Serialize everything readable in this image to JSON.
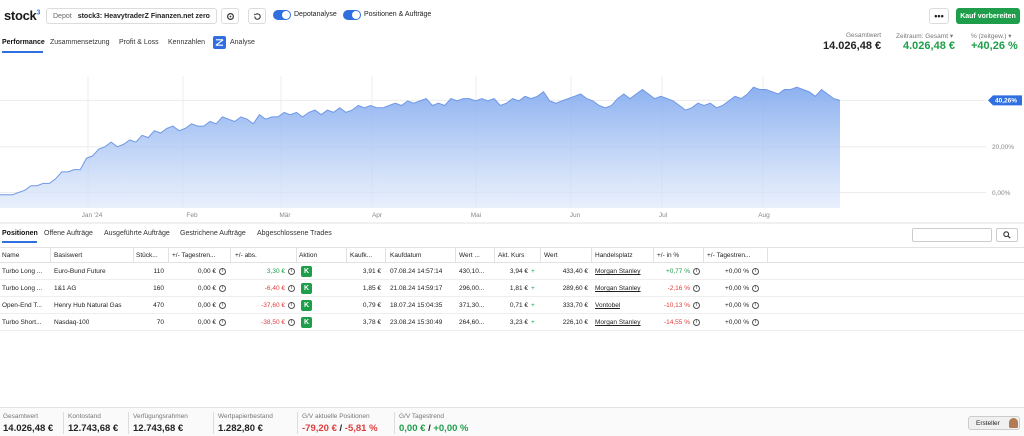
{
  "app": {
    "logo": "stock",
    "logo_sup": "3"
  },
  "depot": {
    "label": "Depot",
    "value": "stock3: HeavytraderZ Finanzen.net zero"
  },
  "toggles": {
    "depotanalyse": "Depotanalyse",
    "positionen": "Positionen & Aufträge"
  },
  "buttons": {
    "more": "•••",
    "buy": "Kauf vorbereiten",
    "search": "⌕",
    "ersteller": "Ersteller"
  },
  "icons": {
    "settings": "gear-icon",
    "refresh": "refresh-icon",
    "analyse": "analyse-icon"
  },
  "tabs": [
    "Performance",
    "Zusammensetzung",
    "Profit & Loss",
    "Kennzahlen",
    "Analyse"
  ],
  "summary": {
    "gesamtwert_label": "Gesamtwert",
    "gesamtwert_value": "14.026,48 €",
    "zeitraum_label": "Zeitraum: Gesamt ▾",
    "zeitraum_value": "4.026,48 €",
    "pct_label": "% (zeitgew.) ▾",
    "pct_value": "+40,26 %"
  },
  "colors": {
    "accent": "#2f6fe0",
    "green": "#1e9e4a",
    "red": "#e03c3c",
    "area": "#9bbcf2"
  },
  "chart_data": {
    "type": "area",
    "x_tick_labels": [
      "Jan '24",
      "Feb",
      "Mär",
      "Apr",
      "Mai",
      "Jun",
      "Jul",
      "Aug"
    ],
    "y_tick_labels": [
      "40,26%",
      "20,00%",
      "0,00%"
    ],
    "current_value_label": "40,26%",
    "ylim": [
      -5,
      50
    ],
    "grid": true,
    "series": [
      {
        "values": [
          -1,
          -1,
          -1,
          0,
          1,
          3,
          3,
          4,
          4,
          6,
          9,
          9,
          10,
          10,
          15,
          16,
          19,
          20,
          22,
          20,
          21,
          23,
          22,
          25,
          24,
          27,
          26,
          28,
          29,
          27,
          28,
          30,
          29,
          29,
          31,
          30,
          33,
          32,
          31,
          33,
          32,
          30,
          34,
          32,
          33,
          33,
          35,
          34,
          35,
          33,
          35,
          36,
          34,
          36,
          35,
          37,
          35,
          36,
          38,
          37,
          38,
          37,
          37,
          38,
          39,
          38,
          40,
          39,
          40,
          41,
          38,
          39,
          38,
          41,
          40,
          41,
          41,
          40,
          41,
          40,
          41,
          38,
          39,
          41,
          40,
          42,
          41,
          42,
          44,
          40,
          39,
          40,
          41,
          42,
          43,
          41,
          40,
          38,
          37,
          38,
          41,
          43,
          41,
          43,
          45,
          43,
          41,
          42,
          41,
          40,
          38,
          36,
          37,
          39,
          38,
          39,
          37,
          38,
          40,
          42,
          41,
          43,
          46,
          45,
          45,
          44,
          43,
          45,
          45,
          46,
          45,
          44,
          42,
          45,
          43,
          41,
          40.26
        ]
      }
    ]
  },
  "position_tabs": [
    "Positionen",
    "Offene Aufträge",
    "Ausgeführte Aufträge",
    "Gestrichene Aufträge",
    "Abgeschlossene Trades"
  ],
  "table": {
    "headers": [
      "Name",
      "Basiswert",
      "Stück...",
      "+/- Tagestren...",
      "+/- abs.",
      "Aktion",
      "Kaufk...",
      "Kaufdatum",
      "Wert ...",
      "Akt. Kurs",
      "Wert",
      "Handelsplatz",
      "+/- in %",
      "+/- Tagestren..."
    ],
    "rows": [
      {
        "name": "Turbo Long ...",
        "basiswert": "Euro-Bund Future",
        "stueck": "110",
        "tagestrend": "0,00 €",
        "abs": "3,30 €",
        "aktion": "K",
        "kaufkurs": "3,91 €",
        "kaufdatum": "07.08.24 14:57:14",
        "wert_kauf": "430,10...",
        "akt_kurs": "3,94 €",
        "wert": "433,40 €",
        "handelsplatz": "Morgan Stanley",
        "pct": "+0,77 %",
        "tagestrend_pct": "+0,00 %",
        "sign": "pos"
      },
      {
        "name": "Turbo Long ...",
        "basiswert": "1&1 AG",
        "stueck": "160",
        "tagestrend": "0,00 €",
        "abs": "-6,40 €",
        "aktion": "K",
        "kaufkurs": "1,85 €",
        "kaufdatum": "21.08.24 14:59:17",
        "wert_kauf": "296,00...",
        "akt_kurs": "1,81 €",
        "wert": "289,60 €",
        "handelsplatz": "Morgan Stanley",
        "pct": "-2,16 %",
        "tagestrend_pct": "+0,00 %",
        "sign": "neg"
      },
      {
        "name": "Open-End T...",
        "basiswert": "Henry Hub Natural Gas",
        "stueck": "470",
        "tagestrend": "0,00 €",
        "abs": "-37,60 €",
        "aktion": "K",
        "kaufkurs": "0,79 €",
        "kaufdatum": "18.07.24 15:04:35",
        "wert_kauf": "371,30...",
        "akt_kurs": "0,71 €",
        "wert": "333,70 €",
        "handelsplatz": "Vontobel",
        "pct": "-10,13 %",
        "tagestrend_pct": "+0,00 %",
        "sign": "neg"
      },
      {
        "name": "Turbo Short...",
        "basiswert": "Nasdaq-100",
        "stueck": "70",
        "tagestrend": "0,00 €",
        "abs": "-38,50 €",
        "aktion": "K",
        "kaufkurs": "3,78 €",
        "kaufdatum": "23.08.24 15:30:49",
        "wert_kauf": "264,60...",
        "akt_kurs": "3,23 €",
        "wert": "226,10 €",
        "handelsplatz": "Morgan Stanley",
        "pct": "-14,55 %",
        "tagestrend_pct": "+0,00 %",
        "sign": "neg"
      }
    ]
  },
  "footer": {
    "gesamtwert_label": "Gesamtwert",
    "gesamtwert_value": "14.026,48 €",
    "konto_label": "Kontostand",
    "konto_value": "12.743,68 €",
    "verf_label": "Verfügungsrahmen",
    "verf_value": "12.743,68 €",
    "wp_label": "Wertpapierbestand",
    "wp_value": "1.282,80 €",
    "gv_label": "G/V aktuelle Positionen",
    "gv_value_abs": "-79,20 €",
    "gv_sep": "/",
    "gv_value_pct": "-5,81 %",
    "gvt_label": "G/V Tagestrend",
    "gvt_value_abs": "0,00 €",
    "gvt_sep": "/",
    "gvt_value_pct": "+0,00 %"
  }
}
